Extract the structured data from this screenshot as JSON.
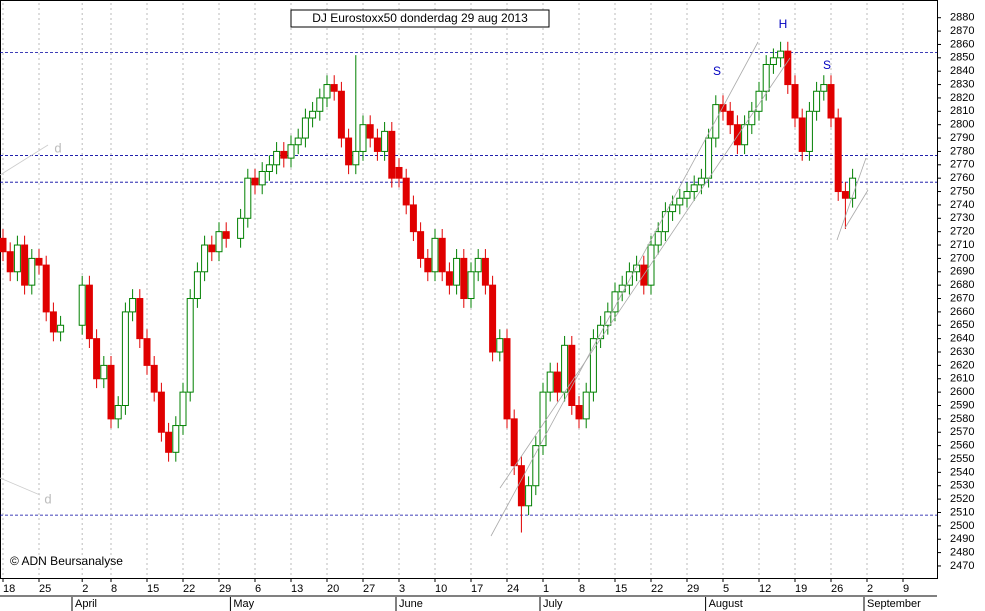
{
  "chart_data": {
    "type": "candlestick",
    "title": "DJ Eurostoxx50 donderdag 29 aug 2013",
    "source": "© ADN Beursanalyse",
    "annotations": [
      "H",
      "S",
      "S",
      "d",
      "d"
    ],
    "categories": [
      "18",
      null,
      null,
      null,
      null,
      "25",
      null,
      null,
      null,
      null,
      null,
      "2",
      null,
      null,
      null,
      "8",
      null,
      null,
      null,
      null,
      "15",
      null,
      null,
      null,
      null,
      "22",
      null,
      null,
      null,
      null,
      "29",
      null,
      null,
      null,
      null,
      "6",
      null,
      null,
      null,
      null,
      "13",
      null,
      null,
      null,
      null,
      "20",
      null,
      null,
      null,
      null,
      "27",
      null,
      null,
      null,
      null,
      "3",
      null,
      null,
      null,
      null,
      "10",
      null,
      null,
      null,
      null,
      "17",
      null,
      null,
      null,
      null,
      "24",
      null,
      null,
      null,
      null,
      "1",
      null,
      null,
      null,
      null,
      "8",
      null,
      null,
      null,
      null,
      "15",
      null,
      null,
      null,
      null,
      "22",
      null,
      null,
      null,
      null,
      "29",
      null,
      null,
      null,
      null,
      "5",
      null,
      null,
      null,
      null,
      "12",
      null,
      null,
      null,
      null,
      "19",
      null,
      null,
      null,
      null,
      "26",
      null,
      null,
      null,
      null,
      "2",
      null,
      null,
      null,
      null,
      "9",
      null,
      null,
      null,
      null
    ],
    "month_labels": [
      null,
      null,
      null,
      null,
      null,
      null,
      null,
      null,
      null,
      null,
      "April",
      null,
      null,
      null,
      null,
      null,
      null,
      null,
      null,
      null,
      null,
      null,
      null,
      null,
      null,
      null,
      null,
      null,
      null,
      null,
      null,
      null,
      "May",
      null,
      null,
      null,
      null,
      null,
      null,
      null,
      null,
      null,
      null,
      null,
      null,
      null,
      null,
      null,
      null,
      null,
      null,
      null,
      null,
      null,
      null,
      "June",
      null,
      null,
      null,
      null,
      null,
      null,
      null,
      null,
      null,
      null,
      null,
      null,
      null,
      null,
      null,
      null,
      null,
      null,
      null,
      "July",
      null,
      null,
      null,
      null,
      null,
      null,
      null,
      null,
      null,
      null,
      null,
      null,
      null,
      null,
      null,
      null,
      null,
      null,
      null,
      null,
      null,
      null,
      "August",
      null,
      null,
      null,
      null,
      null,
      null,
      null,
      null,
      null,
      null,
      null,
      null,
      null,
      null,
      null,
      null,
      null,
      null,
      null,
      null,
      null,
      "September",
      null,
      null,
      null,
      null,
      null,
      null,
      null,
      null,
      null
    ],
    "open": [
      2715,
      2705,
      2690,
      2710,
      2680,
      2700,
      2695,
      2660,
      2645,
      null,
      null,
      2650,
      2680,
      2640,
      2610,
      2620,
      2580,
      2590,
      2660,
      2670,
      2640,
      2620,
      2600,
      2570,
      2555,
      2575,
      2600,
      2670,
      2690,
      2710,
      2705,
      2720,
      null,
      2715,
      2730,
      2760,
      2755,
      2765,
      2770,
      2780,
      2775,
      2785,
      2790,
      2805,
      2810,
      2820,
      2830,
      2825,
      2790,
      2770,
      2780,
      2800,
      2790,
      2780,
      2795,
      2768,
      2760,
      2740,
      2720,
      2700,
      2690,
      2715,
      2690,
      2680,
      2700,
      2670,
      2690,
      2700,
      2680,
      2630,
      2640,
      2580,
      2545,
      2515,
      2530,
      2560,
      2600,
      2615,
      2600,
      2635,
      2590,
      2580,
      2600,
      2640,
      2650,
      2660,
      2675,
      2680,
      2690,
      2695,
      2680,
      2710,
      2720,
      2735,
      2740,
      2745,
      2750,
      2755,
      2760,
      2790,
      2815,
      2810,
      2800,
      2785,
      2800,
      2810,
      2825,
      2845,
      2850,
      2855,
      2830,
      2805,
      2780,
      2810,
      2825,
      2830,
      2805,
      2750,
      2745,
      null,
      null,
      null,
      null,
      null,
      null,
      null,
      null,
      null,
      null,
      null
    ],
    "high": [
      2722,
      2712,
      2717,
      2717,
      2707,
      2707,
      2702,
      2667,
      2657,
      null,
      null,
      2687,
      2687,
      2647,
      2627,
      2627,
      2597,
      2667,
      2677,
      2677,
      2647,
      2627,
      2607,
      2577,
      2582,
      2607,
      2677,
      2697,
      2717,
      2717,
      2727,
      2727,
      null,
      2737,
      2767,
      2767,
      2772,
      2777,
      2787,
      2787,
      2792,
      2797,
      2812,
      2817,
      2827,
      2837,
      2837,
      2832,
      2797,
      2852,
      2807,
      2807,
      2797,
      2802,
      2802,
      2775,
      2767,
      2747,
      2727,
      2707,
      2722,
      2722,
      2697,
      2707,
      2707,
      2697,
      2707,
      2707,
      2687,
      2647,
      2647,
      2587,
      2552,
      2537,
      2567,
      2607,
      2622,
      2622,
      2642,
      2642,
      2597,
      2607,
      2647,
      2657,
      2667,
      2682,
      2687,
      2697,
      2702,
      2702,
      2717,
      2727,
      2742,
      2747,
      2752,
      2757,
      2762,
      2767,
      2797,
      2822,
      2822,
      2817,
      2807,
      2807,
      2817,
      2832,
      2852,
      2857,
      2862,
      2862,
      2837,
      2812,
      2817,
      2832,
      2837,
      2837,
      2812,
      2757,
      2767,
      null,
      null,
      null,
      null,
      null,
      null,
      null,
      null,
      null,
      null,
      null
    ],
    "low": [
      2698,
      2683,
      2683,
      2673,
      2673,
      2688,
      2653,
      2638,
      2638,
      null,
      null,
      2643,
      2633,
      2603,
      2603,
      2573,
      2573,
      2583,
      2653,
      2633,
      2613,
      2593,
      2563,
      2548,
      2548,
      2568,
      2593,
      2663,
      2683,
      2698,
      2698,
      2708,
      null,
      2708,
      2723,
      2748,
      2748,
      2758,
      2763,
      2768,
      2768,
      2778,
      2783,
      2798,
      2803,
      2813,
      2818,
      2783,
      2763,
      2763,
      2773,
      2783,
      2773,
      2773,
      2753,
      2753,
      2733,
      2713,
      2693,
      2683,
      2683,
      2683,
      2673,
      2673,
      2663,
      2663,
      2683,
      2673,
      2623,
      2623,
      2573,
      2538,
      2495,
      2508,
      2523,
      2553,
      2593,
      2593,
      2593,
      2583,
      2573,
      2573,
      2593,
      2633,
      2643,
      2653,
      2668,
      2673,
      2683,
      2673,
      2673,
      2703,
      2713,
      2728,
      2733,
      2738,
      2743,
      2748,
      2753,
      2783,
      2803,
      2793,
      2778,
      2778,
      2793,
      2803,
      2818,
      2838,
      2843,
      2823,
      2798,
      2773,
      2773,
      2803,
      2818,
      2798,
      2743,
      2722,
      2738,
      null,
      null,
      null,
      null,
      null,
      null,
      null,
      null,
      null,
      null,
      null
    ],
    "close": [
      2705,
      2690,
      2710,
      2680,
      2700,
      2695,
      2660,
      2645,
      2650,
      null,
      null,
      2680,
      2640,
      2610,
      2620,
      2580,
      2590,
      2660,
      2670,
      2640,
      2620,
      2600,
      2570,
      2555,
      2575,
      2600,
      2670,
      2690,
      2710,
      2705,
      2720,
      2715,
      null,
      2730,
      2760,
      2755,
      2765,
      2770,
      2780,
      2775,
      2785,
      2790,
      2805,
      2810,
      2820,
      2830,
      2825,
      2790,
      2770,
      2780,
      2800,
      2790,
      2780,
      2795,
      2760,
      2760,
      2740,
      2720,
      2700,
      2690,
      2715,
      2690,
      2680,
      2700,
      2670,
      2690,
      2700,
      2680,
      2630,
      2640,
      2580,
      2545,
      2515,
      2530,
      2560,
      2600,
      2615,
      2600,
      2635,
      2590,
      2580,
      2600,
      2640,
      2650,
      2660,
      2675,
      2680,
      2690,
      2695,
      2680,
      2710,
      2720,
      2735,
      2740,
      2745,
      2750,
      2755,
      2760,
      2790,
      2815,
      2810,
      2800,
      2785,
      2800,
      2810,
      2825,
      2845,
      2850,
      2855,
      2830,
      2805,
      2780,
      2810,
      2825,
      2830,
      2805,
      2750,
      2745,
      2760,
      null,
      null,
      null,
      null,
      null,
      null,
      null,
      null,
      null,
      null,
      null
    ],
    "up_color": "#008000",
    "down_color": "#e00000",
    "hlines": [
      2854,
      2757,
      2777,
      2508
    ],
    "hline_color": "#0000a0",
    "ylim": [
      2461,
      2891
    ],
    "yticks": [
      2470,
      2480,
      2490,
      2500,
      2510,
      2520,
      2530,
      2540,
      2550,
      2560,
      2570,
      2580,
      2590,
      2600,
      2610,
      2620,
      2630,
      2640,
      2650,
      2660,
      2670,
      2680,
      2690,
      2700,
      2710,
      2720,
      2730,
      2740,
      2750,
      2760,
      2770,
      2780,
      2790,
      2800,
      2810,
      2820,
      2830,
      2840,
      2850,
      2860,
      2870,
      2880
    ],
    "grid": true
  }
}
